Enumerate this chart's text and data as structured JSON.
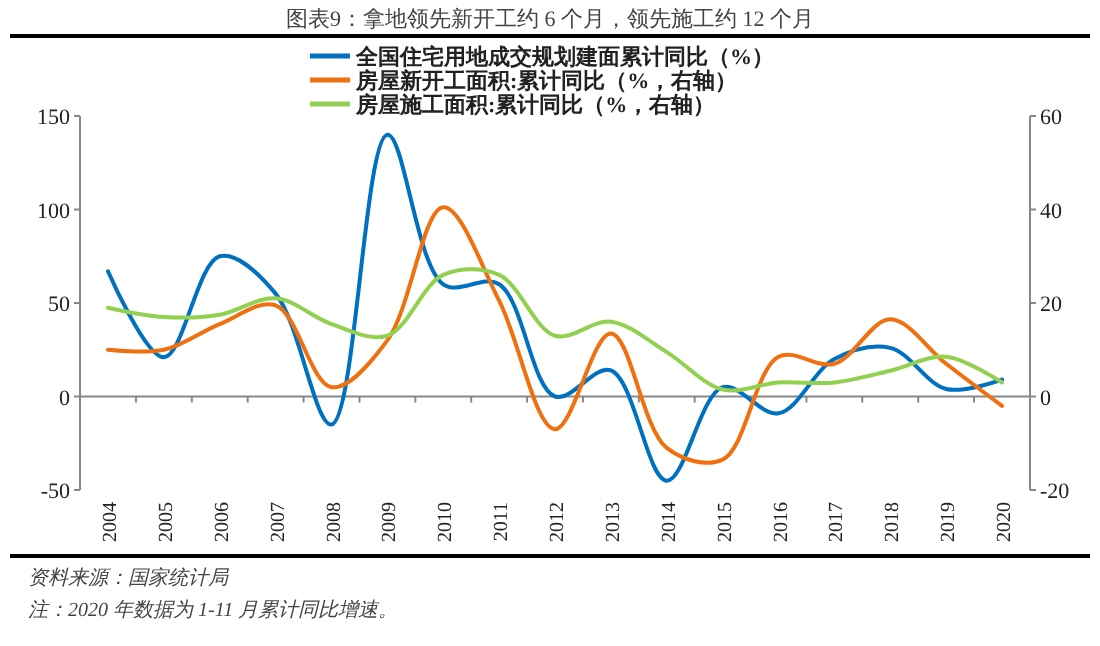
{
  "chart_data": {
    "type": "line",
    "title": "图表9：拿地领先新开工约 6 个月，领先施工约 12 个月",
    "categories": [
      "2004",
      "2005",
      "2006",
      "2007",
      "2008",
      "2009",
      "2010",
      "2011",
      "2012",
      "2013",
      "2014",
      "2015",
      "2016",
      "2017",
      "2018",
      "2019",
      "2020"
    ],
    "series": [
      {
        "name": "全国住宅用地成交规划建面累计同比（%）",
        "color": "#0070c0",
        "values": [
          67,
          21,
          75,
          55,
          -15,
          140,
          60,
          60,
          0,
          14,
          -45,
          5,
          -9,
          20,
          26,
          4,
          9
        ]
      },
      {
        "name": "房屋新开工面积:累计同比（%，右轴）",
        "color": "#f07010",
        "axis": "y2",
        "values": [
          10,
          10,
          15.5,
          19.5,
          2,
          12,
          40.5,
          20.5,
          -7,
          13.5,
          -11,
          -13.5,
          8.5,
          7,
          16.5,
          7,
          -2
        ]
      },
      {
        "name": "房屋施工面积:累计同比（%，右轴）",
        "color": "#92d050",
        "axis": "y2",
        "values": [
          19,
          17,
          17.5,
          21,
          15.5,
          13,
          26,
          26,
          13,
          16,
          9.5,
          1.5,
          3,
          3,
          5.5,
          8.5,
          3
        ]
      }
    ],
    "ylim": [
      -50,
      150
    ],
    "yticks": [
      -50,
      0,
      50,
      100,
      150
    ],
    "y2lim": [
      -20,
      60
    ],
    "y2ticks": [
      -20,
      0,
      20,
      40,
      60
    ],
    "legend": "top",
    "annotations": [
      "资料来源：国家统计局",
      "注：2020 年数据为 1-11 月累计同比增速。"
    ]
  }
}
